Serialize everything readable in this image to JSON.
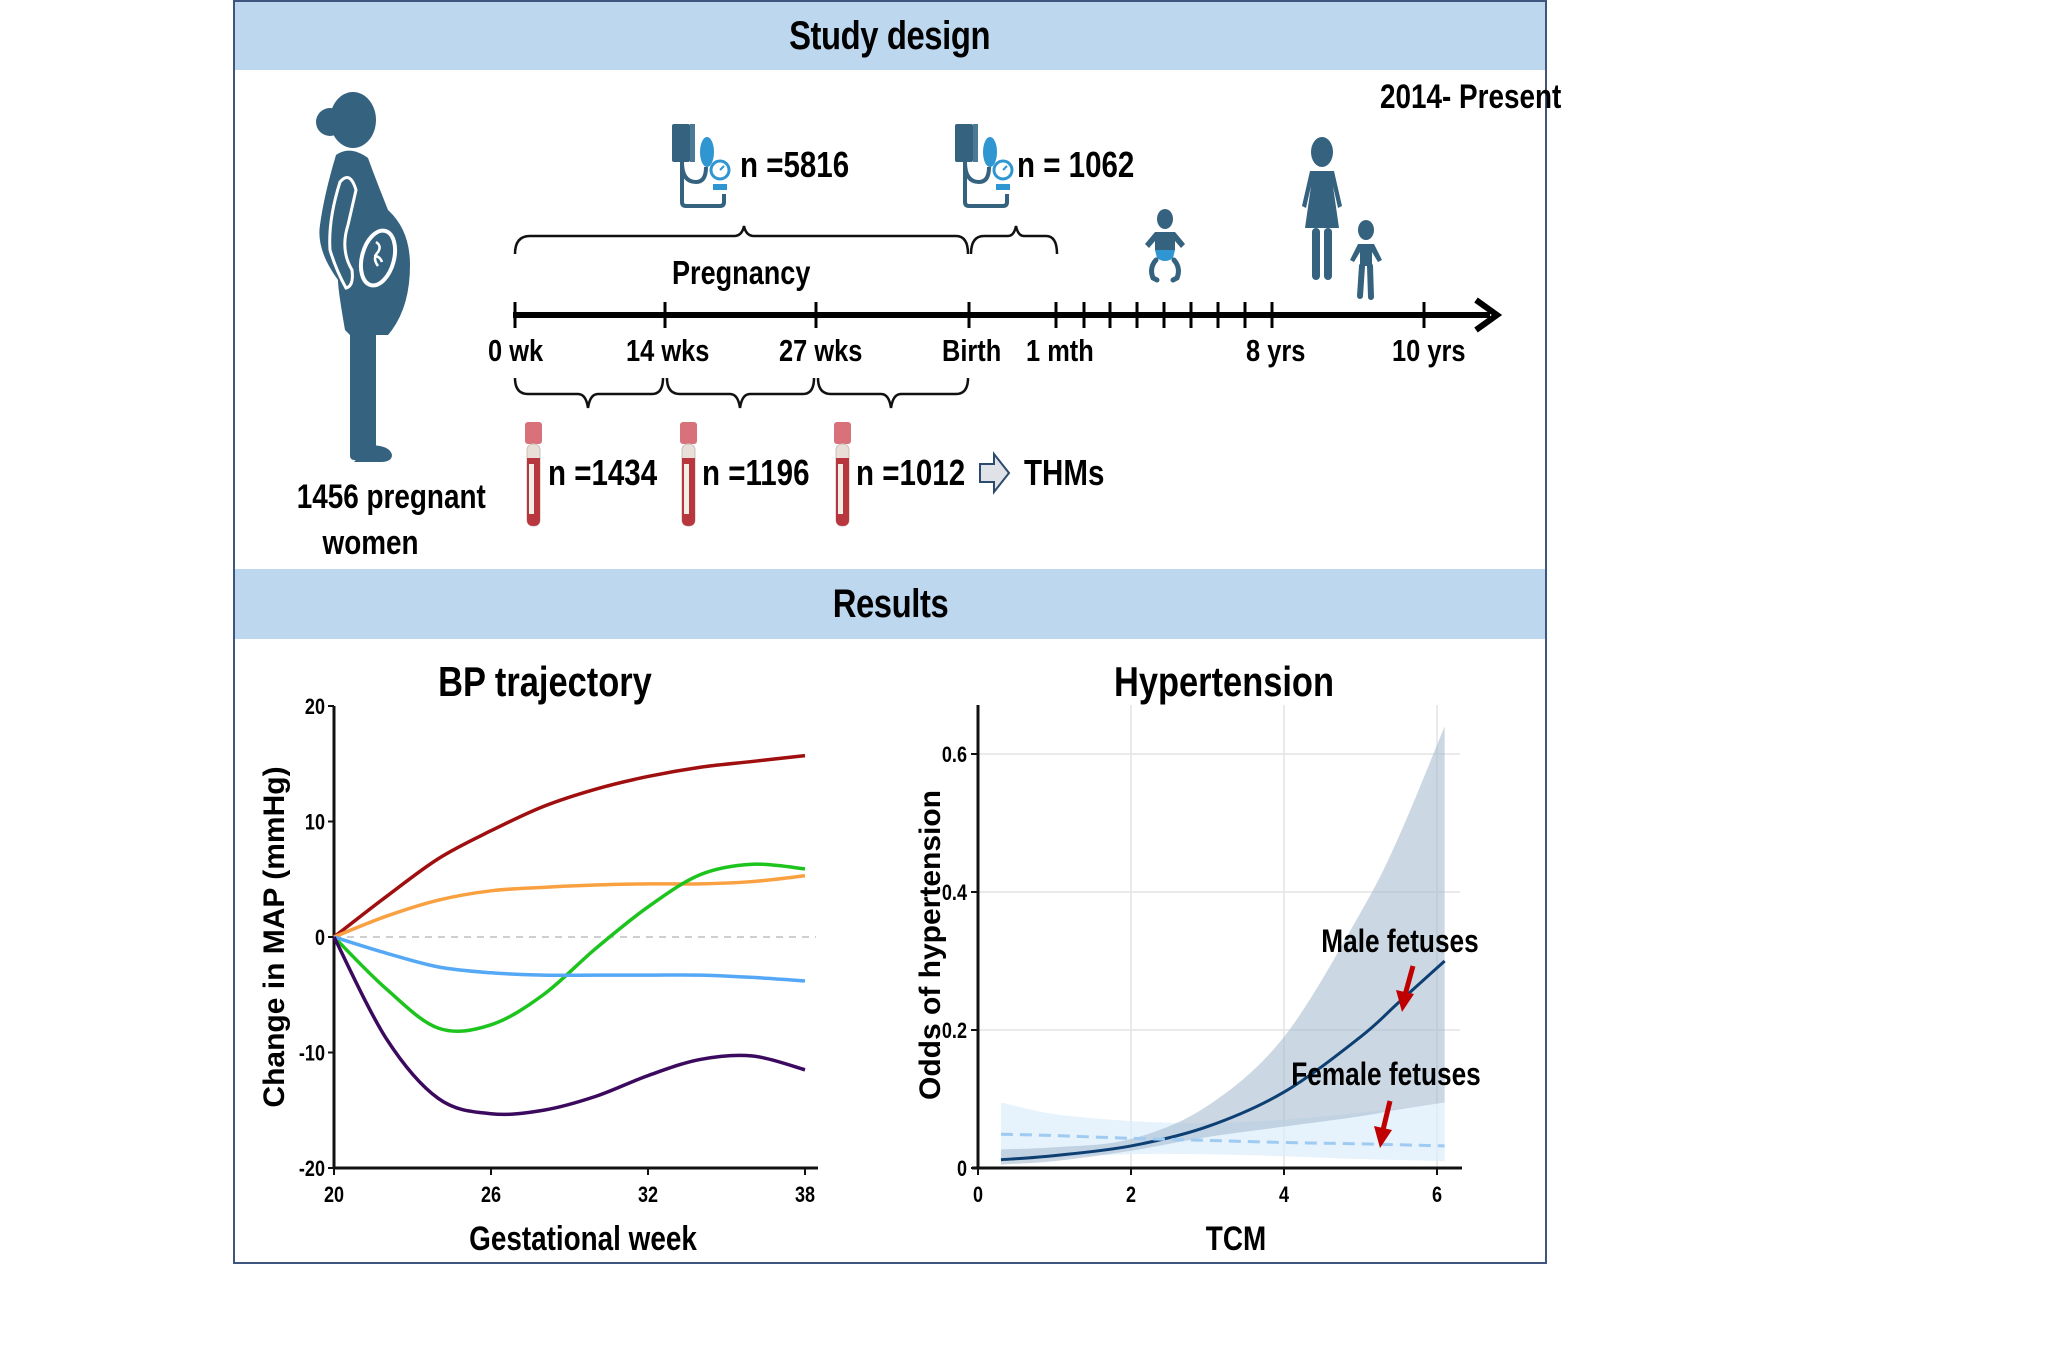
{
  "headers": {
    "study_design": "Study design",
    "results": "Results"
  },
  "study": {
    "period": "2014- Present",
    "cohort_count": "1456 pregnant",
    "cohort_unit": "women",
    "bp_measure_pregnancy": "n =5816",
    "bp_measure_postnatal": "n = 1062",
    "pregnancy_label": "Pregnancy",
    "timeline_labels": [
      "0 wk",
      "14 wks",
      "27 wks",
      "Birth",
      "1 mth",
      "8 yrs",
      "10 yrs"
    ],
    "blood_samples": [
      "n =1434",
      "n =1196",
      "n =1012"
    ],
    "exposure_label": "THMs",
    "icons": {
      "pregnant_woman": "pregnant-woman-icon",
      "bp_monitor": "blood-pressure-monitor-icon",
      "blood_tube": "blood-tube-icon",
      "baby": "baby-icon",
      "mother_child": "mother-child-icon",
      "arrow": "right-arrow-icon"
    },
    "colors": {
      "figure": "#35627e",
      "accent_blue": "#2f96d1",
      "band": "#bdd7ee",
      "tube_red": "#b8373e",
      "tube_cap": "#d9717a"
    }
  },
  "chart_data": [
    {
      "type": "line",
      "title": "BP trajectory",
      "xlabel": "Gestational week",
      "ylabel": "Change in MAP (mmHg)",
      "xlim": [
        20,
        38
      ],
      "ylim": [
        -20,
        20
      ],
      "xticks": [
        20,
        26,
        32,
        38
      ],
      "yticks": [
        -20,
        -10,
        0,
        10,
        20
      ],
      "reference_line": 0,
      "grid": false,
      "x": [
        20,
        22,
        24,
        26,
        28,
        30,
        32,
        34,
        36,
        38
      ],
      "series": [
        {
          "name": "trajectory-1",
          "color": "#a00f0f",
          "values": [
            0,
            3.5,
            6.8,
            9.2,
            11.3,
            12.8,
            13.9,
            14.7,
            15.2,
            15.7
          ]
        },
        {
          "name": "trajectory-2",
          "color": "#f9a040",
          "values": [
            0,
            1.8,
            3.2,
            4.0,
            4.3,
            4.5,
            4.6,
            4.6,
            4.8,
            5.3
          ]
        },
        {
          "name": "trajectory-3",
          "color": "#1ec41e",
          "values": [
            0,
            -4.5,
            -7.9,
            -7.6,
            -5.0,
            -1.0,
            2.6,
            5.4,
            6.3,
            5.9
          ]
        },
        {
          "name": "trajectory-4",
          "color": "#55a8f5",
          "values": [
            0,
            -1.4,
            -2.6,
            -3.1,
            -3.3,
            -3.3,
            -3.3,
            -3.3,
            -3.5,
            -3.8
          ]
        },
        {
          "name": "trajectory-5",
          "color": "#3b0a5e",
          "values": [
            0,
            -8.8,
            -14.0,
            -15.3,
            -15.0,
            -13.8,
            -12.0,
            -10.6,
            -10.3,
            -11.5
          ]
        }
      ]
    },
    {
      "type": "line",
      "title": "Hypertension",
      "xlabel": "TCM",
      "ylabel": "Odds of hypertension",
      "xlim": [
        0,
        6.4
      ],
      "ylim": [
        0,
        0.67
      ],
      "xticks": [
        0,
        2,
        4,
        6
      ],
      "yticks": [
        0,
        0.2,
        0.4,
        0.6
      ],
      "ytick_labels": [
        "0",
        "0.2",
        "0.4",
        "0.6"
      ],
      "grid": true,
      "series": [
        {
          "name": "Male fetuses",
          "color": "#0d3f73",
          "band_color": "#a9bdd0",
          "style": "solid",
          "x": [
            0.3,
            1,
            2,
            3,
            4,
            5,
            5.5,
            6.1
          ],
          "values": [
            0.012,
            0.018,
            0.032,
            0.06,
            0.11,
            0.19,
            0.24,
            0.3
          ],
          "ci_lower": [
            0.005,
            0.01,
            0.025,
            0.045,
            0.06,
            0.075,
            0.085,
            0.095
          ],
          "ci_upper": [
            0.027,
            0.03,
            0.042,
            0.09,
            0.19,
            0.37,
            0.48,
            0.64
          ]
        },
        {
          "name": "Female fetuses",
          "color": "#9fcbf2",
          "band_color": "#dcedfb",
          "style": "dashed",
          "x": [
            0.3,
            1,
            2,
            3,
            4,
            5,
            6.1
          ],
          "values": [
            0.049,
            0.047,
            0.043,
            0.04,
            0.037,
            0.035,
            0.032
          ],
          "ci_lower": [
            0.01,
            0.015,
            0.02,
            0.02,
            0.017,
            0.013,
            0.01
          ],
          "ci_upper": [
            0.095,
            0.078,
            0.068,
            0.065,
            0.07,
            0.08,
            0.095
          ]
        }
      ],
      "annotations": [
        {
          "text": "Male fetuses",
          "arrow_color": "#c00000"
        },
        {
          "text": "Female fetuses",
          "arrow_color": "#c00000"
        }
      ]
    }
  ]
}
